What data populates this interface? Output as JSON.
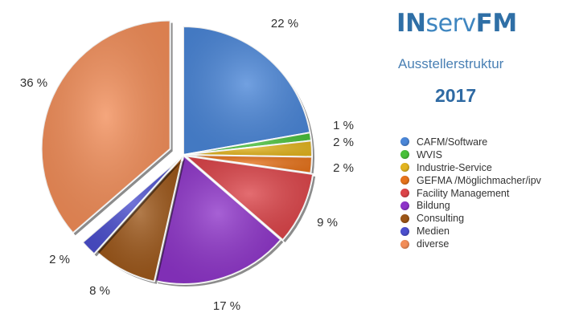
{
  "header": {
    "logo_part1": "IN",
    "logo_part2": "serv",
    "logo_part3": "FM",
    "subtitle": "Ausstellerstruktur",
    "year": "2017"
  },
  "colors": {
    "brand": "#2f6fa6"
  },
  "chart_data": {
    "type": "pie",
    "title": "Ausstellerstruktur",
    "slices": [
      {
        "label": "CAFM/Software",
        "value": 22,
        "display": "22 %",
        "color": "#4a86d8"
      },
      {
        "label": "WVIS",
        "value": 1,
        "display": "1 %",
        "color": "#48c03a"
      },
      {
        "label": "Industrie-Service",
        "value": 2,
        "display": "2 %",
        "color": "#e2b41f"
      },
      {
        "label": "GEFMA /Möglichmacher/ipv",
        "value": 2,
        "display": "2 %",
        "color": "#e6731c"
      },
      {
        "label": "Facility Management",
        "value": 9,
        "display": "9 %",
        "color": "#dc4449"
      },
      {
        "label": "Bildung",
        "value": 17,
        "display": "17 %",
        "color": "#8e34c9"
      },
      {
        "label": "Consulting",
        "value": 8,
        "display": "8 %",
        "color": "#9c5618"
      },
      {
        "label": "Medien",
        "value": 2,
        "display": "2 %",
        "color": "#4b4fce"
      },
      {
        "label": "diverse",
        "value": 36,
        "display": "36 %",
        "color": "#f28d58"
      }
    ],
    "legend_position": "right"
  }
}
